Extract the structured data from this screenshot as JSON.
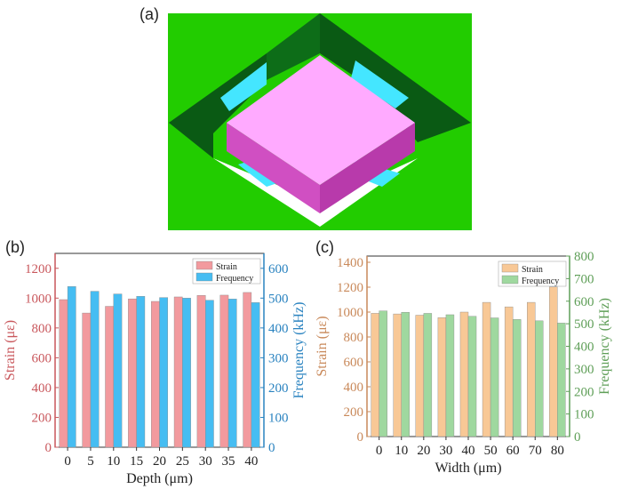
{
  "panels": {
    "a": "(a)",
    "b": "(b)",
    "c": "(c)"
  },
  "colors": {
    "background": "#22cc00",
    "frame_dark": "#0a5a14",
    "frame_mid": "#0d6d18",
    "beam": "#44e6ff",
    "mass_top": "#ffaaff",
    "mass_side_left": "#d04fc2",
    "mass_side_right": "#b83aab",
    "gap": "#ffffff",
    "b_strain": "#f29a9e",
    "b_freq": "#46bdf2",
    "b_left_axis": "#c9575c",
    "b_right_axis": "#2a83c0",
    "c_strain": "#f8c896",
    "c_freq": "#9fd89f",
    "c_left_axis": "#c9895a",
    "c_right_axis": "#5f9f58"
  },
  "chart_data": [
    {
      "type": "bar",
      "panel": "(b)",
      "categories": [
        "0",
        "5",
        "10",
        "15",
        "20",
        "25",
        "30",
        "35",
        "40"
      ],
      "xlabel": "Depth (μm)",
      "ylabel": "Strain (με)",
      "ylabel_right": "Frequency (kHz)",
      "ylim": [
        0,
        1300
      ],
      "ylim_right": [
        0,
        650
      ],
      "yticks": [
        0,
        200,
        400,
        600,
        800,
        1000,
        1200
      ],
      "yticks_right": [
        0,
        100,
        200,
        300,
        400,
        500,
        600
      ],
      "legend_position": "top-right",
      "grid": false,
      "series": [
        {
          "name": "Strain",
          "axis": "left",
          "values": [
            990,
            900,
            945,
            995,
            978,
            1008,
            1018,
            1020,
            1038
          ]
        },
        {
          "name": "Frequency",
          "axis": "right",
          "values": [
            539,
            523,
            514,
            506,
            502,
            500,
            493,
            497,
            485
          ]
        }
      ]
    },
    {
      "type": "bar",
      "panel": "(c)",
      "categories": [
        "0",
        "10",
        "20",
        "30",
        "40",
        "50",
        "60",
        "70",
        "80"
      ],
      "xlabel": "Width (μm)",
      "ylabel": "Strain (με)",
      "ylabel_right": "Frequency (kHz)",
      "ylim": [
        0,
        1450
      ],
      "ylim_right": [
        0,
        800
      ],
      "yticks": [
        0,
        200,
        400,
        600,
        800,
        1000,
        1200,
        1400
      ],
      "yticks_right": [
        0,
        100,
        200,
        300,
        400,
        500,
        600,
        700,
        800
      ],
      "legend_position": "top-right",
      "grid": false,
      "series": [
        {
          "name": "Strain",
          "axis": "left",
          "values": [
            990,
            985,
            975,
            955,
            1000,
            1078,
            1042,
            1078,
            1202
          ]
        },
        {
          "name": "Frequency",
          "axis": "right",
          "values": [
            557,
            551,
            546,
            540,
            533,
            526,
            519,
            513,
            503
          ]
        }
      ]
    }
  ]
}
